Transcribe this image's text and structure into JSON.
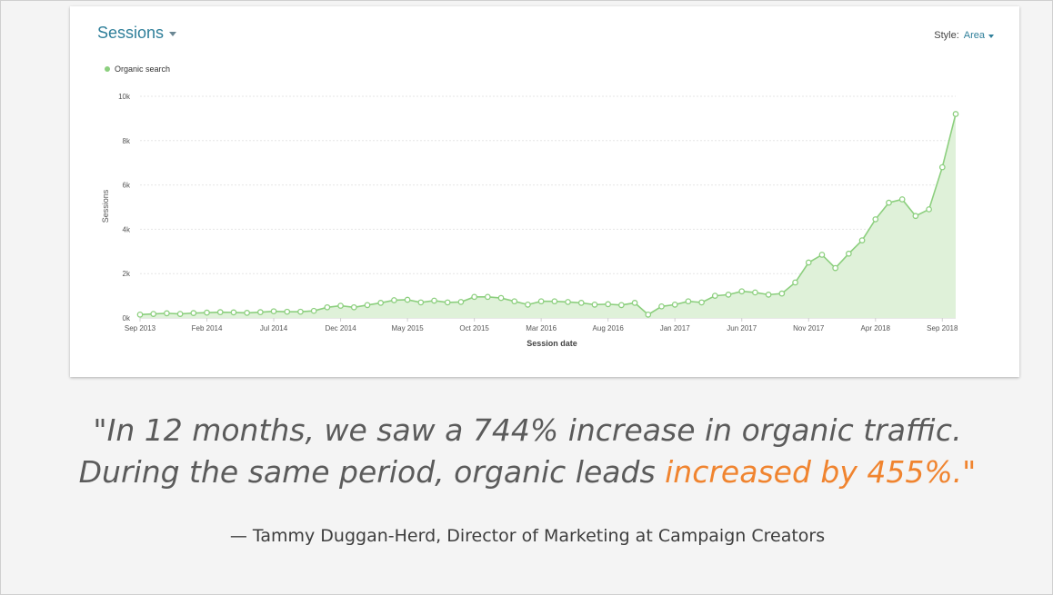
{
  "card": {
    "title": "Sessions",
    "style_label": "Style:",
    "style_value": "Area"
  },
  "quote": {
    "line1": "\"In 12 months, we saw a 744% increase in organic traffic.",
    "line2_start": "During the same period, organic leads ",
    "line2_highlight": "increased by 455%.\""
  },
  "attribution": "— Tammy Duggan-Herd, Director of Marketing at Campaign Creators",
  "colors": {
    "line": "#8ccf7e",
    "fill": "#dff1d9",
    "accent": "#f0842f",
    "title": "#2f7f9a"
  },
  "chart_data": {
    "type": "area",
    "xlabel": "Session date",
    "ylabel": "Sessions",
    "ylim": [
      0,
      10000
    ],
    "y_ticks": [
      {
        "value": 0,
        "label": "0k"
      },
      {
        "value": 2000,
        "label": "2k"
      },
      {
        "value": 4000,
        "label": "4k"
      },
      {
        "value": 6000,
        "label": "6k"
      },
      {
        "value": 8000,
        "label": "8k"
      },
      {
        "value": 10000,
        "label": "10k"
      }
    ],
    "x_ticks": [
      {
        "index": 0,
        "label": "Sep 2013"
      },
      {
        "index": 5,
        "label": "Feb 2014"
      },
      {
        "index": 10,
        "label": "Jul 2014"
      },
      {
        "index": 15,
        "label": "Dec 2014"
      },
      {
        "index": 20,
        "label": "May 2015"
      },
      {
        "index": 25,
        "label": "Oct 2015"
      },
      {
        "index": 30,
        "label": "Mar 2016"
      },
      {
        "index": 35,
        "label": "Aug 2016"
      },
      {
        "index": 40,
        "label": "Jan 2017"
      },
      {
        "index": 45,
        "label": "Jun 2017"
      },
      {
        "index": 50,
        "label": "Nov 2017"
      },
      {
        "index": 55,
        "label": "Apr 2018"
      },
      {
        "index": 60,
        "label": "Sep 2018"
      }
    ],
    "legend_position": "top-left",
    "grid": true,
    "series": [
      {
        "name": "Organic search",
        "values": [
          150,
          180,
          210,
          180,
          220,
          240,
          260,
          250,
          230,
          260,
          300,
          280,
          280,
          320,
          480,
          550,
          480,
          580,
          680,
          800,
          820,
          700,
          780,
          700,
          720,
          950,
          950,
          900,
          750,
          600,
          750,
          750,
          720,
          680,
          600,
          620,
          580,
          680,
          150,
          520,
          600,
          750,
          700,
          1000,
          1050,
          1200,
          1150,
          1050,
          1100,
          1600,
          2500,
          2850,
          2250,
          2900,
          3500,
          4450,
          5200,
          5350,
          4600,
          4900,
          6800,
          9200
        ]
      }
    ]
  }
}
